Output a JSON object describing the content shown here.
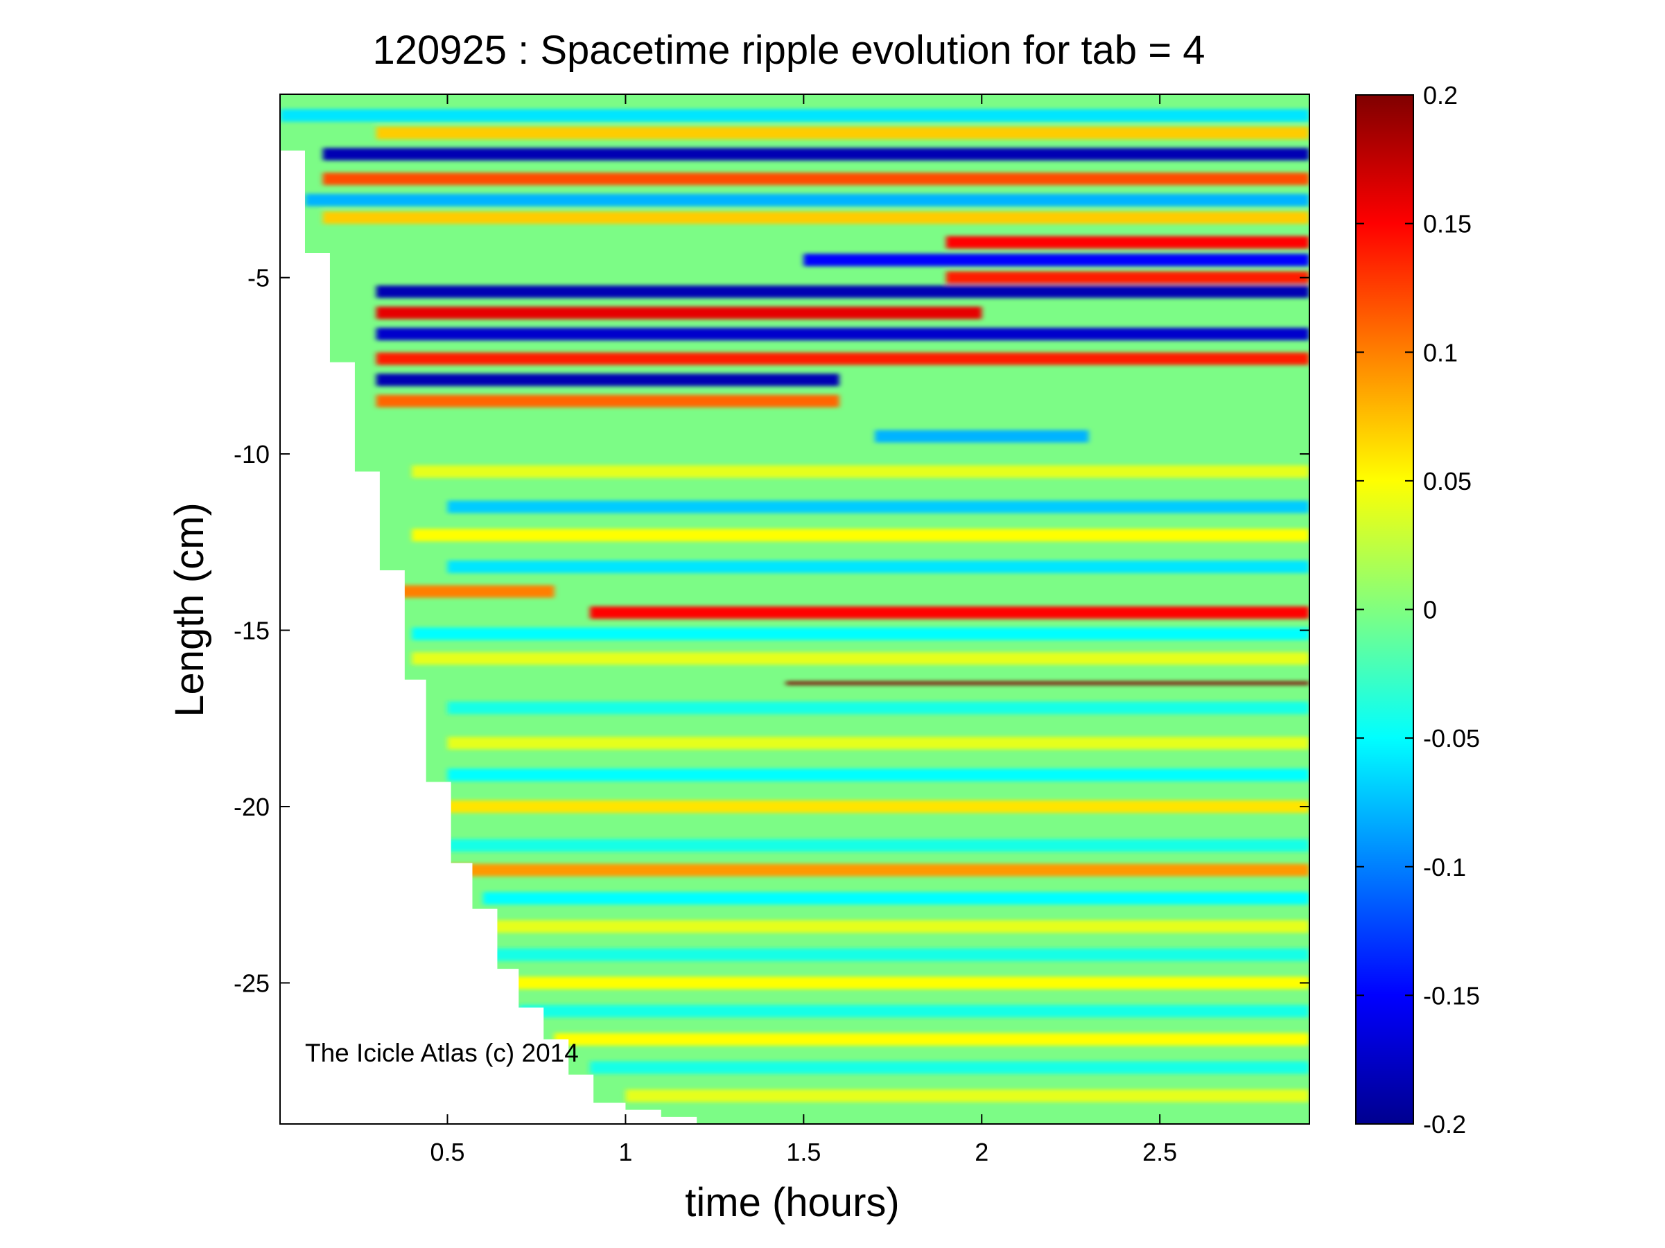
{
  "chart_data": {
    "type": "heatmap",
    "title": "120925 : Spacetime ripple evolution for tab = 4",
    "xlabel": "time (hours)",
    "ylabel": "Length (cm)",
    "xlim": [
      0.03,
      2.92
    ],
    "ylim": [
      -29.0,
      0.2
    ],
    "xticks": [
      {
        "value": 0.5,
        "label": "0.5"
      },
      {
        "value": 1,
        "label": "1"
      },
      {
        "value": 1.5,
        "label": "1.5"
      },
      {
        "value": 2,
        "label": "2"
      },
      {
        "value": 2.5,
        "label": "2.5"
      }
    ],
    "yticks": [
      {
        "value": -5,
        "label": "-5"
      },
      {
        "value": -10,
        "label": "-10"
      },
      {
        "value": -15,
        "label": "-15"
      },
      {
        "value": -20,
        "label": "-20"
      },
      {
        "value": -25,
        "label": "-25"
      }
    ],
    "colorbar": {
      "colormap": "jet",
      "range": [
        -0.2,
        0.2
      ],
      "ticks": [
        {
          "value": 0.2,
          "label": "0.2"
        },
        {
          "value": 0.15,
          "label": "0.15"
        },
        {
          "value": 0.1,
          "label": "0.1"
        },
        {
          "value": 0.05,
          "label": "0.05"
        },
        {
          "value": 0,
          "label": "0"
        },
        {
          "value": -0.05,
          "label": "-0.05"
        },
        {
          "value": -0.1,
          "label": "-0.1"
        },
        {
          "value": -0.15,
          "label": "-0.15"
        },
        {
          "value": -0.2,
          "label": "-0.2"
        }
      ]
    },
    "annotation": "The Icicle Atlas (c) 2014",
    "grid": false,
    "growth_front": [
      {
        "t": 0.03,
        "length": -1.4
      },
      {
        "t": 0.1,
        "length": -4.3
      },
      {
        "t": 0.17,
        "length": -7.4
      },
      {
        "t": 0.24,
        "length": -10.5
      },
      {
        "t": 0.31,
        "length": -13.3
      },
      {
        "t": 0.38,
        "length": -16.4
      },
      {
        "t": 0.44,
        "length": -19.3
      },
      {
        "t": 0.51,
        "length": -21.6
      },
      {
        "t": 0.57,
        "length": -22.9
      },
      {
        "t": 0.64,
        "length": -24.6
      },
      {
        "t": 0.7,
        "length": -25.7
      },
      {
        "t": 0.77,
        "length": -26.6
      },
      {
        "t": 0.84,
        "length": -27.6
      },
      {
        "t": 0.91,
        "length": -28.4
      },
      {
        "t": 1.0,
        "length": -28.6
      },
      {
        "t": 1.1,
        "length": -28.8
      },
      {
        "t": 1.2,
        "length": -29.0
      }
    ],
    "bands": [
      {
        "length": -0.4,
        "t0": 0.03,
        "t1": 2.92,
        "value": -0.06
      },
      {
        "length": -0.9,
        "t0": 0.3,
        "t1": 2.92,
        "value": 0.07
      },
      {
        "length": -1.5,
        "t0": 0.15,
        "t1": 2.92,
        "value": -0.18
      },
      {
        "length": -2.2,
        "t0": 0.15,
        "t1": 2.92,
        "value": 0.12
      },
      {
        "length": -2.8,
        "t0": 0.1,
        "t1": 2.92,
        "value": -0.08
      },
      {
        "length": -3.3,
        "t0": 0.15,
        "t1": 2.92,
        "value": 0.07
      },
      {
        "length": -4.0,
        "t0": 1.9,
        "t1": 2.92,
        "value": 0.15
      },
      {
        "length": -4.5,
        "t0": 1.5,
        "t1": 2.92,
        "value": -0.15
      },
      {
        "length": -5.0,
        "t0": 1.9,
        "t1": 2.92,
        "value": 0.14
      },
      {
        "length": -5.4,
        "t0": 0.3,
        "t1": 2.92,
        "value": -0.18
      },
      {
        "length": -6.0,
        "t0": 0.3,
        "t1": 2.0,
        "value": 0.16
      },
      {
        "length": -6.6,
        "t0": 0.3,
        "t1": 2.92,
        "value": -0.17
      },
      {
        "length": -7.3,
        "t0": 0.3,
        "t1": 2.92,
        "value": 0.14
      },
      {
        "length": -7.9,
        "t0": 0.3,
        "t1": 1.6,
        "value": -0.18
      },
      {
        "length": -8.5,
        "t0": 0.3,
        "t1": 1.6,
        "value": 0.11
      },
      {
        "length": -9.5,
        "t0": 1.7,
        "t1": 2.3,
        "value": -0.08
      },
      {
        "length": -10.5,
        "t0": 0.4,
        "t1": 2.92,
        "value": 0.04
      },
      {
        "length": -11.5,
        "t0": 0.5,
        "t1": 2.92,
        "value": -0.07
      },
      {
        "length": -12.3,
        "t0": 0.4,
        "t1": 2.92,
        "value": 0.05
      },
      {
        "length": -13.2,
        "t0": 0.5,
        "t1": 2.92,
        "value": -0.06
      },
      {
        "length": -13.9,
        "t0": 0.35,
        "t1": 0.8,
        "value": 0.1
      },
      {
        "length": -14.5,
        "t0": 0.9,
        "t1": 2.92,
        "value": 0.15
      },
      {
        "length": -15.1,
        "t0": 0.4,
        "t1": 2.92,
        "value": -0.05
      },
      {
        "length": -15.8,
        "t0": 0.4,
        "t1": 2.92,
        "value": 0.04
      },
      {
        "length": -16.5,
        "t0": 1.45,
        "t1": 2.92,
        "value": 0.2
      },
      {
        "length": -17.2,
        "t0": 0.5,
        "t1": 2.92,
        "value": -0.04
      },
      {
        "length": -18.2,
        "t0": 0.5,
        "t1": 2.92,
        "value": 0.04
      },
      {
        "length": -19.1,
        "t0": 0.5,
        "t1": 2.92,
        "value": -0.05
      },
      {
        "length": -20.0,
        "t0": 0.45,
        "t1": 2.92,
        "value": 0.06
      },
      {
        "length": -21.1,
        "t0": 0.5,
        "t1": 2.92,
        "value": -0.04
      },
      {
        "length": -21.8,
        "t0": 0.5,
        "t1": 2.92,
        "value": 0.09
      },
      {
        "length": -22.6,
        "t0": 0.6,
        "t1": 2.92,
        "value": -0.05
      },
      {
        "length": -23.4,
        "t0": 0.6,
        "t1": 2.92,
        "value": 0.04
      },
      {
        "length": -24.2,
        "t0": 0.6,
        "t1": 2.92,
        "value": -0.04
      },
      {
        "length": -25.0,
        "t0": 0.65,
        "t1": 2.92,
        "value": 0.05
      },
      {
        "length": -25.8,
        "t0": 0.7,
        "t1": 2.92,
        "value": -0.04
      },
      {
        "length": -26.6,
        "t0": 0.8,
        "t1": 2.92,
        "value": 0.05
      },
      {
        "length": -27.4,
        "t0": 0.9,
        "t1": 2.92,
        "value": -0.04
      },
      {
        "length": -28.2,
        "t0": 1.0,
        "t1": 2.92,
        "value": 0.04
      }
    ]
  }
}
